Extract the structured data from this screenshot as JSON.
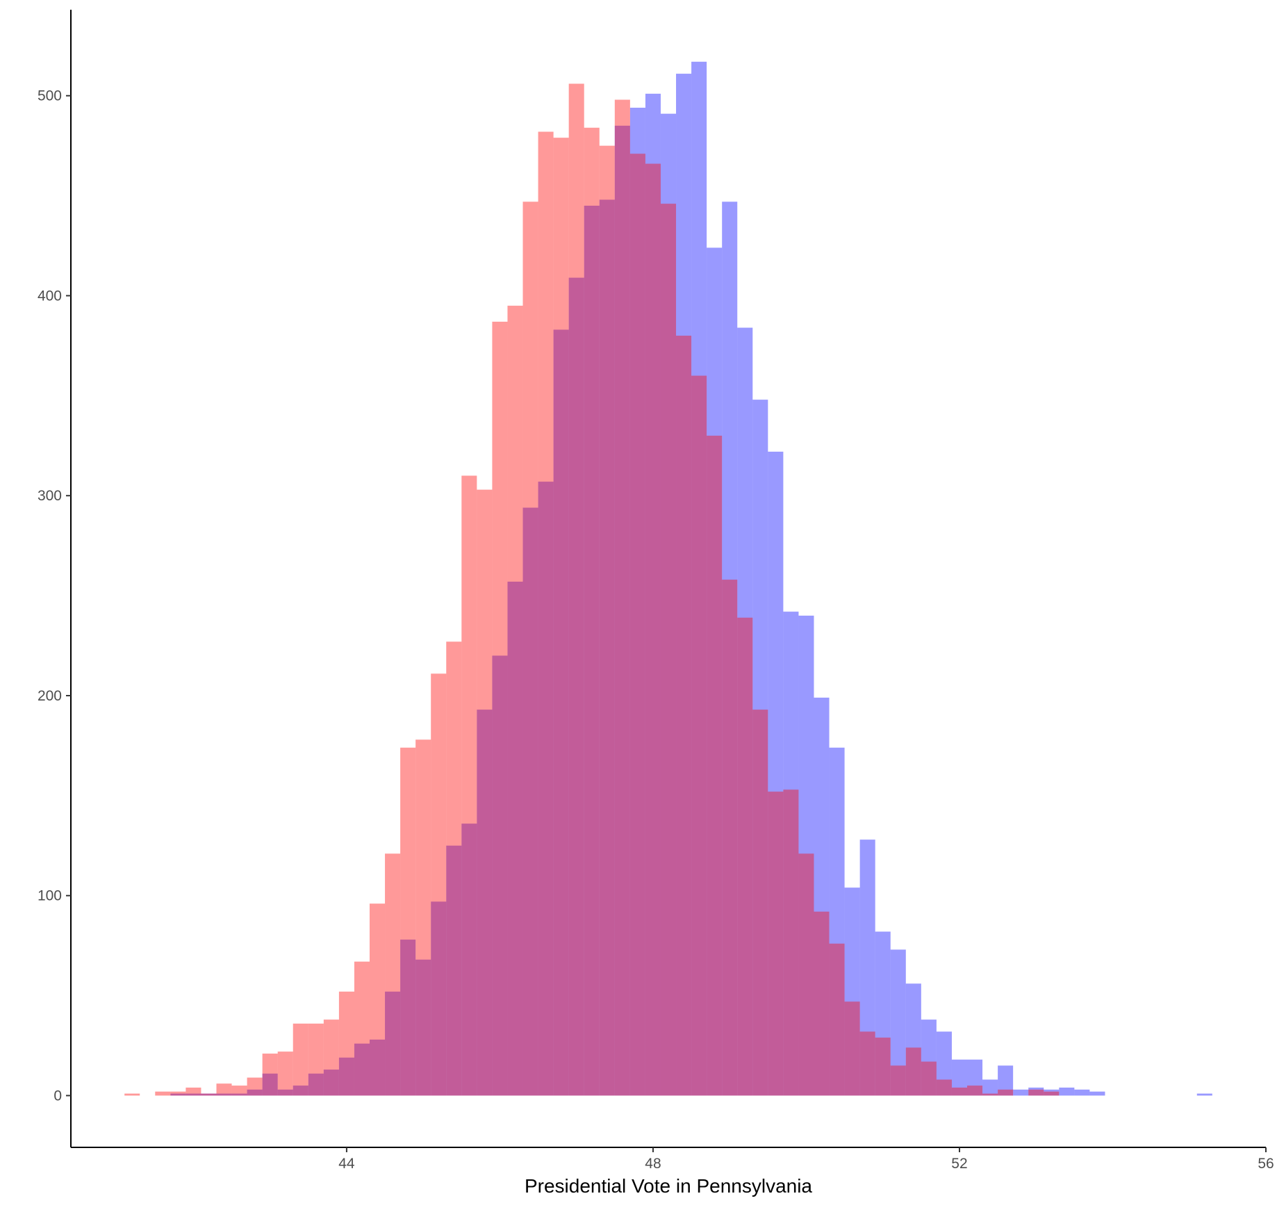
{
  "chart_data": {
    "type": "histogram",
    "x_label": "Presidential Vote in Pennsylvania",
    "bins": [
      41.1,
      41.3,
      41.5,
      41.7,
      41.9,
      42.1,
      42.3,
      42.5,
      42.7,
      42.9,
      43.1,
      43.3,
      43.5,
      43.7,
      43.9,
      44.1,
      44.3,
      44.5,
      44.7,
      44.9,
      45.1,
      45.3,
      45.5,
      45.7,
      45.9,
      46.1,
      46.3,
      46.5,
      46.7,
      46.9,
      47.1,
      47.3,
      47.5,
      47.7,
      47.9,
      48.1,
      48.3,
      48.5,
      48.7,
      48.9,
      49.1,
      49.3,
      49.5,
      49.7,
      49.9,
      50.1,
      50.3,
      50.5,
      50.7,
      50.9,
      51.1,
      51.3,
      51.5,
      51.7,
      51.9,
      52.1,
      52.3,
      52.5,
      52.7,
      52.9,
      53.1,
      53.3,
      53.5,
      53.7,
      53.9,
      54.1,
      54.3,
      54.5,
      54.7,
      54.9,
      55.1,
      55.3
    ],
    "alpha": 0.4,
    "series": [
      {
        "color": "#0000ff",
        "values": [
          0,
          0,
          0,
          1,
          1,
          1,
          1,
          1,
          3,
          11,
          3,
          5,
          11,
          13,
          19,
          26,
          28,
          52,
          78,
          68,
          97,
          125,
          136,
          193,
          220,
          257,
          294,
          307,
          383,
          409,
          445,
          448,
          485,
          494,
          501,
          491,
          511,
          517,
          424,
          447,
          384,
          348,
          322,
          242,
          240,
          199,
          174,
          104,
          128,
          82,
          73,
          56,
          38,
          32,
          18,
          18,
          8,
          15,
          3,
          4,
          3,
          4,
          3,
          2,
          0,
          0,
          0,
          0,
          0,
          0,
          1
        ]
      },
      {
        "color": "#ff0000",
        "values": [
          1,
          0,
          2,
          2,
          4,
          1,
          6,
          5,
          9,
          21,
          22,
          36,
          36,
          38,
          52,
          67,
          96,
          121,
          174,
          178,
          211,
          227,
          310,
          303,
          387,
          395,
          447,
          482,
          479,
          506,
          484,
          475,
          498,
          471,
          466,
          446,
          380,
          360,
          330,
          258,
          239,
          193,
          152,
          153,
          121,
          92,
          76,
          47,
          32,
          29,
          15,
          24,
          17,
          8,
          4,
          5,
          1,
          3,
          0,
          3,
          2,
          0,
          0,
          0,
          0,
          0,
          0,
          0,
          0,
          0,
          0
        ]
      }
    ],
    "xlim": [
      40.4,
      56
    ],
    "xticks": [
      44,
      48,
      52,
      56
    ],
    "ylim": [
      -25.9,
      543
    ],
    "yticks": [
      0,
      100,
      200,
      300,
      400,
      500
    ]
  }
}
